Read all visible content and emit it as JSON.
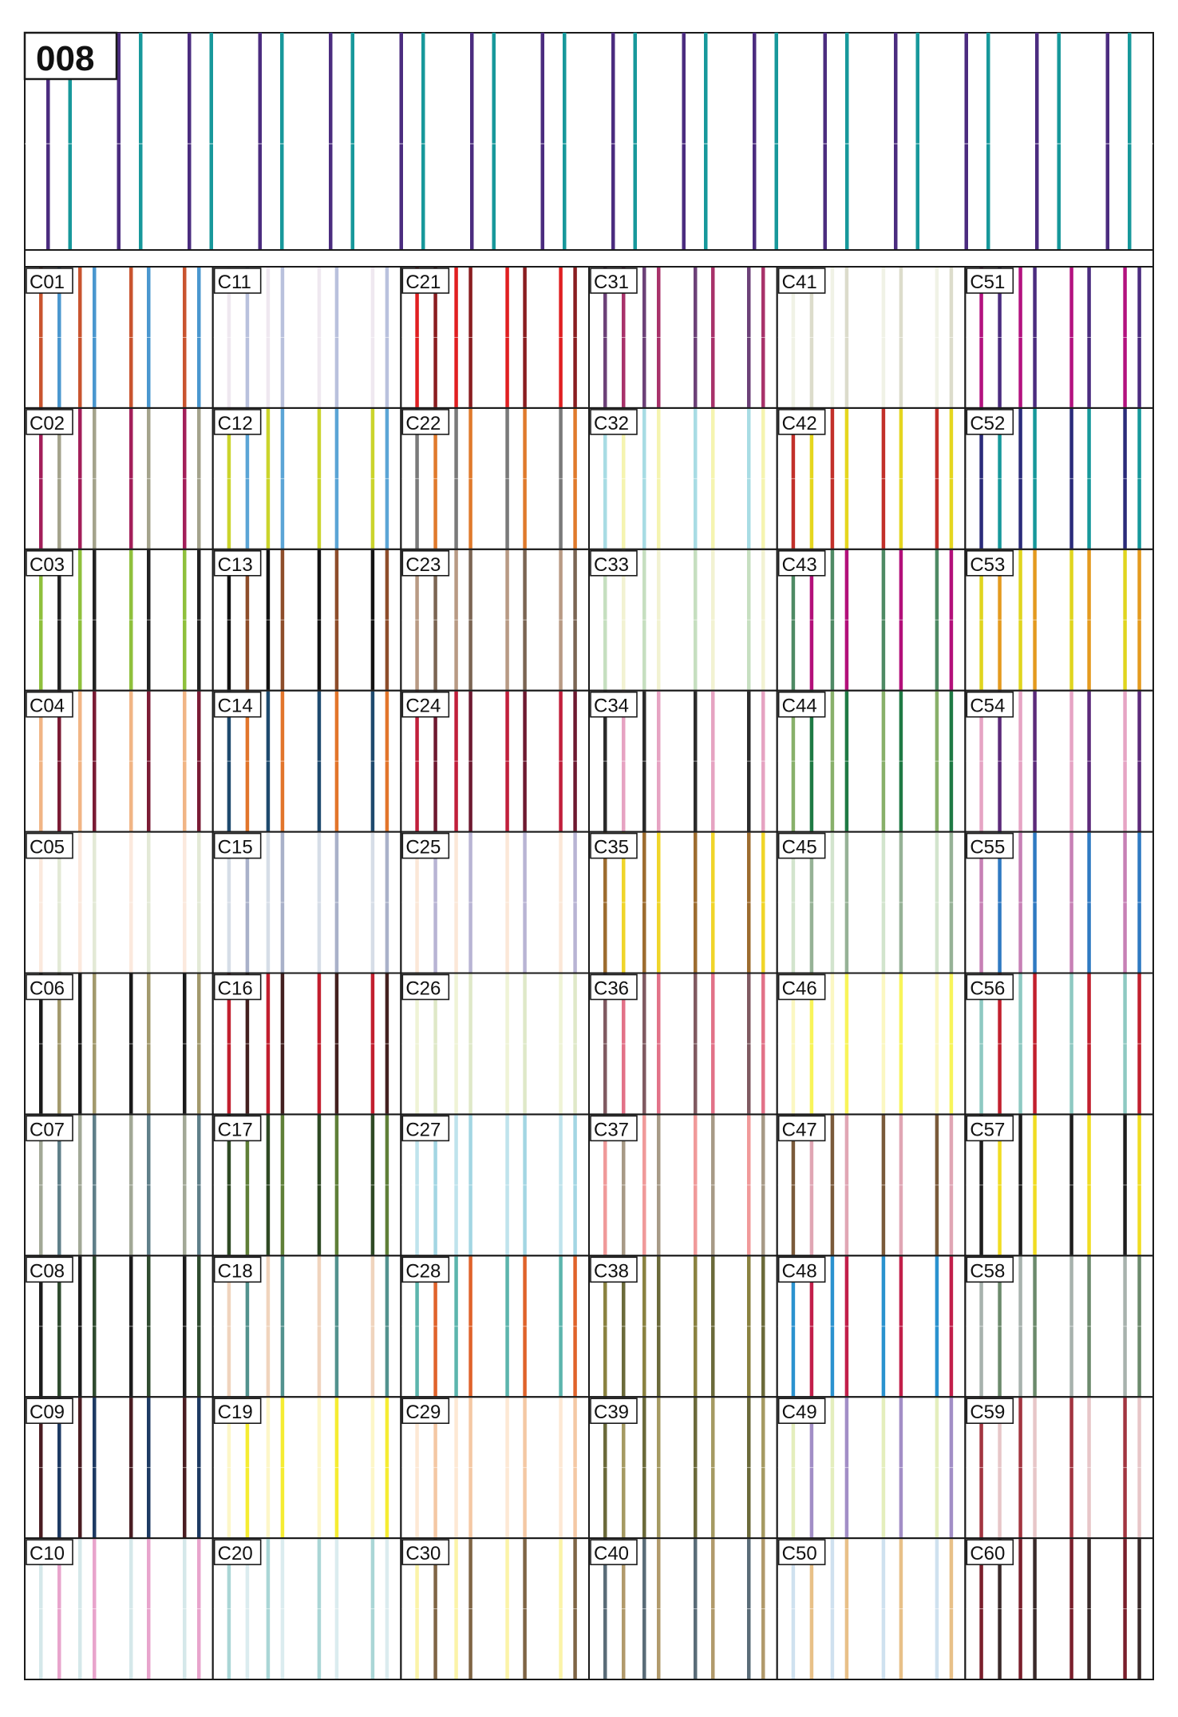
{
  "sheet": {
    "number": "008",
    "header_stripes": [
      "#4b2c7f",
      "#17989b"
    ]
  },
  "cells": [
    {
      "code": "C01",
      "colors": [
        "#c9542f",
        "#4a97cf"
      ]
    },
    {
      "code": "C02",
      "colors": [
        "#a31f5a",
        "#a4a38c"
      ]
    },
    {
      "code": "C03",
      "colors": [
        "#8fc03c",
        "#222222"
      ]
    },
    {
      "code": "C04",
      "colors": [
        "#f1b585",
        "#7a1b34"
      ]
    },
    {
      "code": "C05",
      "colors": [
        "#fbe9dd",
        "#e3e9d6"
      ]
    },
    {
      "code": "C06",
      "colors": [
        "#1a1a1a",
        "#a2996c"
      ]
    },
    {
      "code": "C07",
      "colors": [
        "#a2a896",
        "#5f7f89"
      ]
    },
    {
      "code": "C08",
      "colors": [
        "#1c1c1c",
        "#2f4b2f"
      ]
    },
    {
      "code": "C09",
      "colors": [
        "#4a1d22",
        "#1d3a63"
      ]
    },
    {
      "code": "C10",
      "colors": [
        "#d5e8ea",
        "#e8a4cc"
      ]
    },
    {
      "code": "C11",
      "colors": [
        "#efe8f0",
        "#b9c1dd"
      ]
    },
    {
      "code": "C12",
      "colors": [
        "#cbd42c",
        "#5ba5d6"
      ]
    },
    {
      "code": "C13",
      "colors": [
        "#121212",
        "#8e4d2a"
      ]
    },
    {
      "code": "C14",
      "colors": [
        "#1e4a6e",
        "#e2752b"
      ]
    },
    {
      "code": "C15",
      "colors": [
        "#d6dde7",
        "#a9b1c9"
      ]
    },
    {
      "code": "C16",
      "colors": [
        "#c21f2f",
        "#43201f"
      ]
    },
    {
      "code": "C17",
      "colors": [
        "#2f4a24",
        "#5f7f38"
      ]
    },
    {
      "code": "C18",
      "colors": [
        "#f0d4bd",
        "#52928e"
      ]
    },
    {
      "code": "C19",
      "colors": [
        "#fdf6c8",
        "#f5ec33"
      ]
    },
    {
      "code": "C20",
      "colors": [
        "#aad6d6",
        "#dbecef"
      ]
    },
    {
      "code": "C21",
      "colors": [
        "#e01f21",
        "#8a1d20"
      ]
    },
    {
      "code": "C22",
      "colors": [
        "#7a7a7a",
        "#e07a2c"
      ]
    },
    {
      "code": "C23",
      "colors": [
        "#b89a84",
        "#7b6553"
      ]
    },
    {
      "code": "C24",
      "colors": [
        "#c11f3b",
        "#6e1930"
      ]
    },
    {
      "code": "C25",
      "colors": [
        "#fbe7d7",
        "#b8b4d4"
      ]
    },
    {
      "code": "C26",
      "colors": [
        "#eff3d6",
        "#dfe8c8"
      ]
    },
    {
      "code": "C27",
      "colors": [
        "#bfe3ec",
        "#a3d6e3"
      ]
    },
    {
      "code": "C28",
      "colors": [
        "#5cb5ad",
        "#e0632b"
      ]
    },
    {
      "code": "C29",
      "colors": [
        "#fde8d4",
        "#f4c8a4"
      ]
    },
    {
      "code": "C30",
      "colors": [
        "#fbf3a8",
        "#7f6545"
      ]
    },
    {
      "code": "C31",
      "colors": [
        "#6c4178",
        "#a8326a"
      ]
    },
    {
      "code": "C32",
      "colors": [
        "#a8dce4",
        "#f5f4b0"
      ]
    },
    {
      "code": "C33",
      "colors": [
        "#c6dfc0",
        "#f2f2d2"
      ]
    },
    {
      "code": "C34",
      "colors": [
        "#2b2b2b",
        "#e6a3c2"
      ]
    },
    {
      "code": "C35",
      "colors": [
        "#9d6c2f",
        "#f0d52a"
      ]
    },
    {
      "code": "C36",
      "colors": [
        "#805a61",
        "#e27288"
      ]
    },
    {
      "code": "C37",
      "colors": [
        "#f09a9a",
        "#a79a86"
      ]
    },
    {
      "code": "C38",
      "colors": [
        "#8a8240",
        "#6b6a3a"
      ]
    },
    {
      "code": "C39",
      "colors": [
        "#6b6a3a",
        "#a59a62"
      ]
    },
    {
      "code": "C40",
      "colors": [
        "#5a6c78",
        "#b19a6b"
      ]
    },
    {
      "code": "C41",
      "colors": [
        "#f0f2e6",
        "#dcdccb"
      ]
    },
    {
      "code": "C42",
      "colors": [
        "#c2302a",
        "#e5d61f"
      ]
    },
    {
      "code": "C43",
      "colors": [
        "#4e8a64",
        "#b3107a"
      ]
    },
    {
      "code": "C44",
      "colors": [
        "#88b06a",
        "#1f7a44"
      ]
    },
    {
      "code": "C45",
      "colors": [
        "#d2e4cd",
        "#96b296"
      ]
    },
    {
      "code": "C46",
      "colors": [
        "#fbf7c2",
        "#f8f45a"
      ]
    },
    {
      "code": "C47",
      "colors": [
        "#7a5a3a",
        "#e0a6b4"
      ]
    },
    {
      "code": "C48",
      "colors": [
        "#2a92cf",
        "#c21f4a"
      ]
    },
    {
      "code": "C49",
      "colors": [
        "#e4eebd",
        "#a28ec6"
      ]
    },
    {
      "code": "C50",
      "colors": [
        "#cfe1ef",
        "#e8c088"
      ]
    },
    {
      "code": "C51",
      "colors": [
        "#b3127f",
        "#4b2c7f"
      ]
    },
    {
      "code": "C52",
      "colors": [
        "#2b2b7a",
        "#17989b"
      ]
    },
    {
      "code": "C53",
      "colors": [
        "#e0d51f",
        "#e49a1f"
      ]
    },
    {
      "code": "C54",
      "colors": [
        "#e6a4c4",
        "#5c2a7a"
      ]
    },
    {
      "code": "C55",
      "colors": [
        "#c780b5",
        "#2f7ac2"
      ]
    },
    {
      "code": "C56",
      "colors": [
        "#8ec9c2",
        "#c2202e"
      ]
    },
    {
      "code": "C57",
      "colors": [
        "#1e1e1e",
        "#f0dc23"
      ]
    },
    {
      "code": "C58",
      "colors": [
        "#a7b2ad",
        "#6c8a6c"
      ]
    },
    {
      "code": "C59",
      "colors": [
        "#a23540",
        "#e7c6c8"
      ]
    },
    {
      "code": "C60",
      "colors": [
        "#7a1f2c",
        "#3a2a2a"
      ]
    }
  ]
}
